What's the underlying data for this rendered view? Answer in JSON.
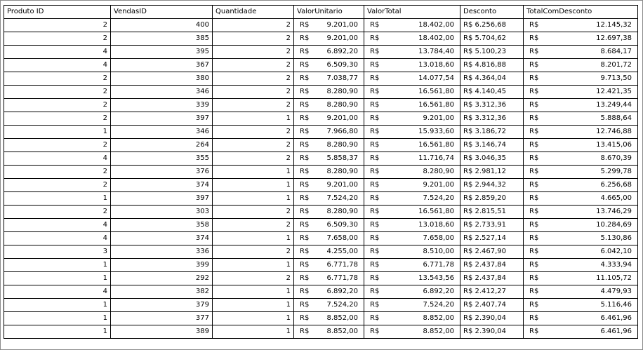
{
  "sheet": {
    "columns": [
      "Produto ID",
      "VendasID",
      "Quantidade",
      "ValorUnitario",
      "ValorTotal",
      "Desconto",
      "TotalComDesconto"
    ],
    "currency_symbol": "R$",
    "rows": [
      [
        "2",
        "400",
        "2",
        "9.201,00",
        "18.402,00",
        "6.256,68",
        "12.145,32"
      ],
      [
        "2",
        "385",
        "2",
        "9.201,00",
        "18.402,00",
        "5.704,62",
        "12.697,38"
      ],
      [
        "4",
        "395",
        "2",
        "6.892,20",
        "13.784,40",
        "5.100,23",
        "8.684,17"
      ],
      [
        "4",
        "367",
        "2",
        "6.509,30",
        "13.018,60",
        "4.816,88",
        "8.201,72"
      ],
      [
        "2",
        "380",
        "2",
        "7.038,77",
        "14.077,54",
        "4.364,04",
        "9.713,50"
      ],
      [
        "2",
        "346",
        "2",
        "8.280,90",
        "16.561,80",
        "4.140,45",
        "12.421,35"
      ],
      [
        "2",
        "339",
        "2",
        "8.280,90",
        "16.561,80",
        "3.312,36",
        "13.249,44"
      ],
      [
        "2",
        "397",
        "1",
        "9.201,00",
        "9.201,00",
        "3.312,36",
        "5.888,64"
      ],
      [
        "1",
        "346",
        "2",
        "7.966,80",
        "15.933,60",
        "3.186,72",
        "12.746,88"
      ],
      [
        "2",
        "264",
        "2",
        "8.280,90",
        "16.561,80",
        "3.146,74",
        "13.415,06"
      ],
      [
        "4",
        "355",
        "2",
        "5.858,37",
        "11.716,74",
        "3.046,35",
        "8.670,39"
      ],
      [
        "2",
        "376",
        "1",
        "8.280,90",
        "8.280,90",
        "2.981,12",
        "5.299,78"
      ],
      [
        "2",
        "374",
        "1",
        "9.201,00",
        "9.201,00",
        "2.944,32",
        "6.256,68"
      ],
      [
        "1",
        "397",
        "1",
        "7.524,20",
        "7.524,20",
        "2.859,20",
        "4.665,00"
      ],
      [
        "2",
        "303",
        "2",
        "8.280,90",
        "16.561,80",
        "2.815,51",
        "13.746,29"
      ],
      [
        "4",
        "358",
        "2",
        "6.509,30",
        "13.018,60",
        "2.733,91",
        "10.284,69"
      ],
      [
        "4",
        "374",
        "1",
        "7.658,00",
        "7.658,00",
        "2.527,14",
        "5.130,86"
      ],
      [
        "3",
        "336",
        "2",
        "4.255,00",
        "8.510,00",
        "2.467,90",
        "6.042,10"
      ],
      [
        "1",
        "399",
        "1",
        "6.771,78",
        "6.771,78",
        "2.437,84",
        "4.333,94"
      ],
      [
        "1",
        "292",
        "2",
        "6.771,78",
        "13.543,56",
        "2.437,84",
        "11.105,72"
      ],
      [
        "4",
        "382",
        "1",
        "6.892,20",
        "6.892,20",
        "2.412,27",
        "4.479,93"
      ],
      [
        "1",
        "379",
        "1",
        "7.524,20",
        "7.524,20",
        "2.407,74",
        "5.116,46"
      ],
      [
        "1",
        "377",
        "1",
        "8.852,00",
        "8.852,00",
        "2.390,04",
        "6.461,96"
      ],
      [
        "1",
        "389",
        "1",
        "8.852,00",
        "8.852,00",
        "2.390,04",
        "6.461,96"
      ]
    ]
  }
}
